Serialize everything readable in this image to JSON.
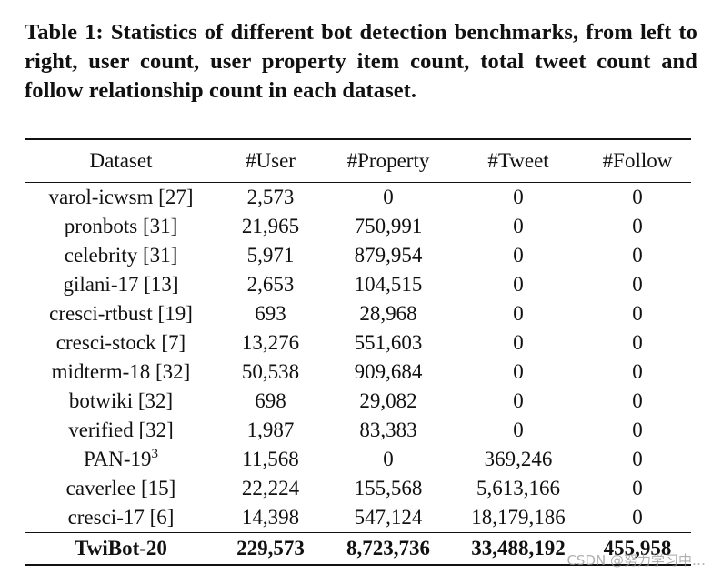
{
  "caption": "Table 1: Statistics of different bot detection benchmarks, from left to right, user count, user property item count, total tweet count and follow relationship count in each dataset.",
  "table": {
    "headers": [
      "Dataset",
      "#User",
      "#Property",
      "#Tweet",
      "#Follow"
    ],
    "rows": [
      {
        "dataset": "varol-icwsm [27]",
        "user": "2,573",
        "property": "0",
        "tweet": "0",
        "follow": "0"
      },
      {
        "dataset": "pronbots [31]",
        "user": "21,965",
        "property": "750,991",
        "tweet": "0",
        "follow": "0"
      },
      {
        "dataset": "celebrity [31]",
        "user": "5,971",
        "property": "879,954",
        "tweet": "0",
        "follow": "0"
      },
      {
        "dataset": "gilani-17 [13]",
        "user": "2,653",
        "property": "104,515",
        "tweet": "0",
        "follow": "0"
      },
      {
        "dataset": "cresci-rtbust [19]",
        "user": "693",
        "property": "28,968",
        "tweet": "0",
        "follow": "0"
      },
      {
        "dataset": "cresci-stock [7]",
        "user": "13,276",
        "property": "551,603",
        "tweet": "0",
        "follow": "0"
      },
      {
        "dataset": "midterm-18 [32]",
        "user": "50,538",
        "property": "909,684",
        "tweet": "0",
        "follow": "0"
      },
      {
        "dataset": "botwiki [32]",
        "user": "698",
        "property": "29,082",
        "tweet": "0",
        "follow": "0"
      },
      {
        "dataset": "verified [32]",
        "user": "1,987",
        "property": "83,383",
        "tweet": "0",
        "follow": "0"
      },
      {
        "dataset": "PAN-19",
        "dataset_sup": "3",
        "user": "11,568",
        "property": "0",
        "tweet": "369,246",
        "follow": "0"
      },
      {
        "dataset": "caverlee [15]",
        "user": "22,224",
        "property": "155,568",
        "tweet": "5,613,166",
        "follow": "0"
      },
      {
        "dataset": "cresci-17 [6]",
        "user": "14,398",
        "property": "547,124",
        "tweet": "18,179,186",
        "follow": "0"
      }
    ],
    "highlight_row": {
      "dataset": "TwiBot-20",
      "user": "229,573",
      "property": "8,723,736",
      "tweet": "33,488,192",
      "follow": "455,958"
    }
  },
  "watermark": "CSDN @努力学习中…"
}
